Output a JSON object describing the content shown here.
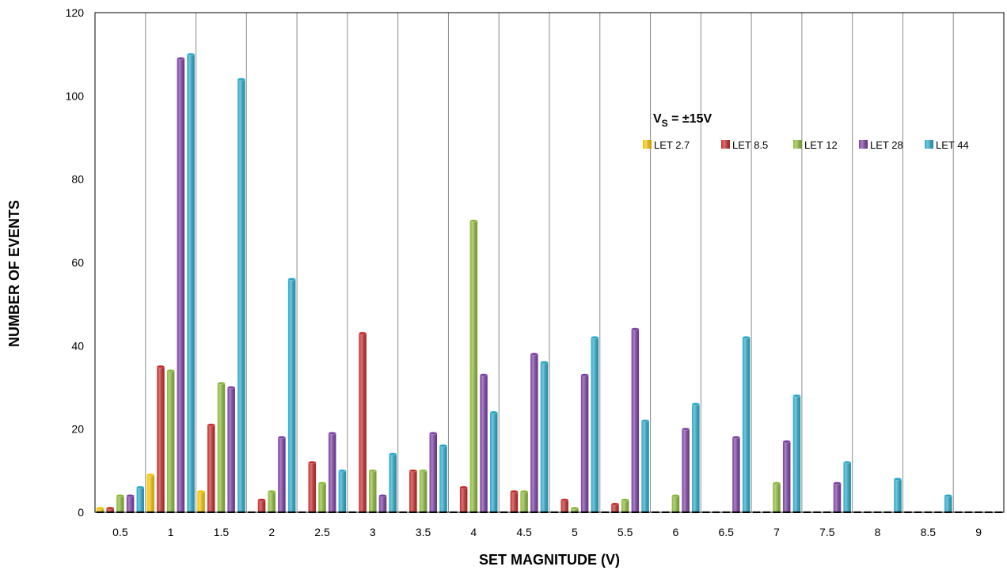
{
  "chart_data": {
    "type": "bar",
    "xlabel": "SET MAGNITUDE (V)",
    "ylabel": "NUMBER OF EVENTS",
    "ylim": [
      0,
      120
    ],
    "yticks": [
      0,
      20,
      40,
      60,
      80,
      100,
      120
    ],
    "grid": "vertical category separators",
    "legend_placement": "top-right",
    "annotation": {
      "main": "V",
      "sub": "S",
      "rest": " = ±15V"
    },
    "categories": [
      "0.5",
      "1",
      "1.5",
      "2",
      "2.5",
      "3",
      "3.5",
      "4",
      "4.5",
      "5",
      "5.5",
      "6",
      "6.5",
      "7",
      "7.5",
      "8",
      "8.5",
      "9"
    ],
    "series": [
      {
        "name": "LET 2.7",
        "color": "#F2C200",
        "values": [
          1,
          9,
          5,
          0,
          0,
          0,
          0,
          0,
          0,
          0,
          0,
          0,
          0,
          0,
          0,
          0,
          0,
          0
        ]
      },
      {
        "name": "LET 8.5",
        "color": "#C42B2B",
        "values": [
          1,
          35,
          21,
          3,
          12,
          43,
          10,
          6,
          5,
          3,
          2,
          0,
          0,
          0,
          0,
          0,
          0,
          0
        ]
      },
      {
        "name": "LET 12",
        "color": "#8CB83A",
        "values": [
          4,
          34,
          31,
          5,
          7,
          10,
          10,
          70,
          5,
          1,
          3,
          4,
          0,
          7,
          0,
          0,
          0,
          0
        ]
      },
      {
        "name": "LET 28",
        "color": "#7B3FA3",
        "values": [
          4,
          109,
          30,
          18,
          19,
          4,
          19,
          33,
          38,
          33,
          44,
          20,
          18,
          17,
          7,
          0,
          0,
          0
        ]
      },
      {
        "name": "LET 44",
        "color": "#2AA8C8",
        "values": [
          6,
          110,
          104,
          56,
          10,
          14,
          16,
          24,
          36,
          42,
          22,
          26,
          42,
          28,
          12,
          8,
          4,
          0
        ]
      }
    ]
  }
}
